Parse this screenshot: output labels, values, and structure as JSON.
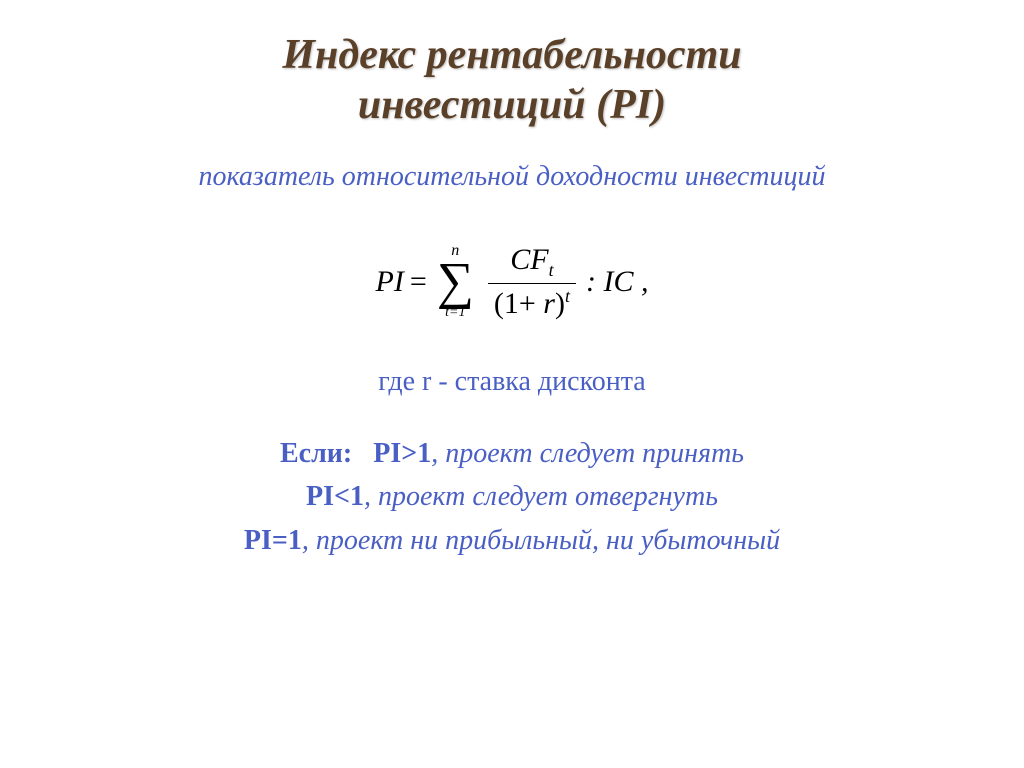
{
  "colors": {
    "title": "#5a4028",
    "body_blue": "#4a5fc4",
    "formula": "#000000",
    "background": "#ffffff"
  },
  "title": {
    "line1": "Индекс рентабельности",
    "line2": "инвестиций (PI)"
  },
  "subtitle": "показатель относительной доходности инвестиций",
  "formula": {
    "lhs": "PI",
    "eq": "=",
    "sum_upper": "n",
    "sum_lower": "t=1",
    "frac_num_base": "CF",
    "frac_num_sub": "t",
    "frac_den_left": "(1",
    "frac_den_plus": "+",
    "frac_den_r": "r",
    "frac_den_right": ")",
    "frac_den_sup": "t",
    "post": ": IC ,"
  },
  "note": "где r - ставка дисконта",
  "conditions": {
    "if_label": "Если:",
    "c1_cond": "PI>1",
    "c1_text": ", проект следует принять",
    "c2_cond": "PI<1",
    "c2_text": ", проект следует отвергнуть",
    "c3_cond": "PI=1",
    "c3_text": ", проект ни прибыльный, ни убыточный"
  },
  "typography": {
    "title_fontsize": 42,
    "body_fontsize": 28,
    "formula_fontsize": 30
  }
}
